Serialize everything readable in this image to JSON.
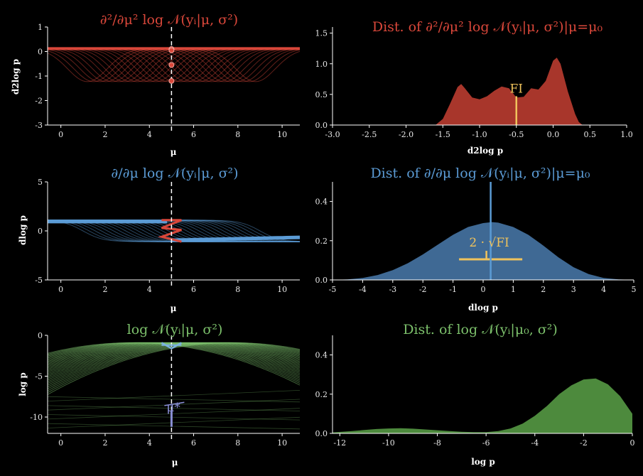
{
  "colors": {
    "red": "#d9473a",
    "red_fill": "#a8362b",
    "blue": "#5b9bd5",
    "blue_fill": "#3f6994",
    "green": "#7cc06b",
    "green_fill": "#4d8a3d",
    "gold": "#f0c35c",
    "axis": "#ffffff"
  },
  "chart_data": [
    {
      "id": "p1",
      "type": "line",
      "title": "∂²/∂μ² log 𝒩(yᵢ|μ, σ²)",
      "xlabel": "μ",
      "ylabel": "d2log p",
      "xlim": [
        -0.6,
        10.8
      ],
      "ylim": [
        -3,
        1
      ],
      "xticks": [
        "0",
        "2",
        "4",
        "6",
        "8",
        "10"
      ],
      "yticks": [
        "1",
        "0",
        "-1",
        "-2",
        "-3"
      ],
      "mu0": 5,
      "point_values": [
        0.1,
        0.05,
        -0.55,
        -1.2
      ],
      "color": "red"
    },
    {
      "id": "p2",
      "type": "area",
      "title": "Dist. of ∂²/∂μ² log 𝒩(yᵢ|μ, σ²)|μ=μ₀",
      "xlabel": "d2log p",
      "ylabel": "",
      "xlim": [
        -3.0,
        1.0
      ],
      "ylim": [
        0,
        1.6
      ],
      "xticks": [
        "-3.0",
        "-2.5",
        "-2.0",
        "-1.5",
        "-1.0",
        "-0.5",
        "0.0",
        "0.5",
        "1.0"
      ],
      "yticks": [
        "1.5",
        "1.0",
        "0.5",
        "0.0"
      ],
      "x": [
        -1.6,
        -1.5,
        -1.4,
        -1.3,
        -1.25,
        -1.2,
        -1.1,
        -1.0,
        -0.9,
        -0.8,
        -0.7,
        -0.6,
        -0.5,
        -0.4,
        -0.3,
        -0.2,
        -0.1,
        0.0,
        0.05,
        0.1,
        0.2,
        0.3,
        0.35,
        0.4
      ],
      "density": [
        0.0,
        0.1,
        0.35,
        0.62,
        0.67,
        0.6,
        0.45,
        0.42,
        0.47,
        0.56,
        0.63,
        0.6,
        0.45,
        0.46,
        0.6,
        0.58,
        0.72,
        1.05,
        1.1,
        1.0,
        0.55,
        0.18,
        0.05,
        0.0
      ],
      "fi_marker": {
        "label": "FI",
        "x": -0.5,
        "height": 0.47
      },
      "color": "red"
    },
    {
      "id": "p3",
      "type": "line",
      "title": "∂/∂μ log 𝒩(yᵢ|μ, σ²)",
      "xlabel": "μ",
      "ylabel": "dlog p",
      "xlim": [
        -0.6,
        10.8
      ],
      "ylim": [
        -5,
        5
      ],
      "xticks": [
        "0",
        "2",
        "4",
        "6",
        "8",
        "10"
      ],
      "yticks": [
        "5",
        "0",
        "-5"
      ],
      "mu0": 5,
      "color": "blue"
    },
    {
      "id": "p4",
      "type": "area",
      "title": "Dist. of ∂/∂μ log 𝒩(yᵢ|μ, σ²)|μ=μ₀",
      "xlabel": "dlog p",
      "ylabel": "",
      "xlim": [
        -5,
        5
      ],
      "ylim": [
        0,
        0.5
      ],
      "xticks": [
        "-5",
        "-4",
        "-3",
        "-2",
        "-1",
        "0",
        "1",
        "2",
        "3",
        "4",
        "5"
      ],
      "yticks": [
        "0.4",
        "0.2",
        "0.0"
      ],
      "x": [
        -5,
        -4.5,
        -4,
        -3.5,
        -3,
        -2.5,
        -2,
        -1.5,
        -1,
        -0.5,
        0,
        0.3,
        0.5,
        1,
        1.5,
        2,
        2.5,
        3,
        3.5,
        4,
        4.5,
        5
      ],
      "density": [
        0.0,
        0.003,
        0.01,
        0.025,
        0.05,
        0.085,
        0.13,
        0.18,
        0.23,
        0.27,
        0.29,
        0.295,
        0.292,
        0.27,
        0.23,
        0.175,
        0.115,
        0.065,
        0.03,
        0.01,
        0.003,
        0.0
      ],
      "mean_line": {
        "x": 0.25,
        "top": 0.5
      },
      "sd_marker": {
        "label": "2 · √FI",
        "from": -0.8,
        "to": 1.3,
        "y": 0.105
      },
      "color": "blue"
    },
    {
      "id": "p5",
      "type": "line",
      "title": "log 𝒩(yᵢ|μ, σ²)",
      "xlabel": "μ",
      "ylabel": "log p",
      "xlim": [
        -0.6,
        10.8
      ],
      "ylim": [
        -12,
        0
      ],
      "xticks": [
        "0",
        "2",
        "4",
        "6",
        "8",
        "10"
      ],
      "yticks": [
        "0",
        "-5",
        "-10"
      ],
      "mu0": 5,
      "mu_star_label": "μ*",
      "color": "green"
    },
    {
      "id": "p6",
      "type": "area",
      "title": "Dist. of log 𝒩(yᵢ|μ₀, σ²)",
      "xlabel": "log  p",
      "ylabel": "",
      "xlim": [
        -12.3,
        0
      ],
      "ylim": [
        0,
        0.5
      ],
      "xticks": [
        "-12",
        "-10",
        "-8",
        "-6",
        "-4",
        "-2",
        "0"
      ],
      "yticks": [
        "0.4",
        "0.2",
        "0.0"
      ],
      "x": [
        -12.3,
        -11.5,
        -11,
        -10.5,
        -10,
        -9.5,
        -9,
        -8.5,
        -8,
        -7.5,
        -7,
        -6.5,
        -6,
        -5.5,
        -5,
        -4.5,
        -4,
        -3.5,
        -3,
        -2.5,
        -2,
        -1.5,
        -1,
        -0.5,
        0
      ],
      "density": [
        0.005,
        0.012,
        0.017,
        0.022,
        0.025,
        0.026,
        0.024,
        0.02,
        0.016,
        0.012,
        0.008,
        0.006,
        0.006,
        0.012,
        0.025,
        0.05,
        0.09,
        0.14,
        0.2,
        0.245,
        0.275,
        0.28,
        0.25,
        0.19,
        0.1
      ],
      "color": "green"
    }
  ]
}
